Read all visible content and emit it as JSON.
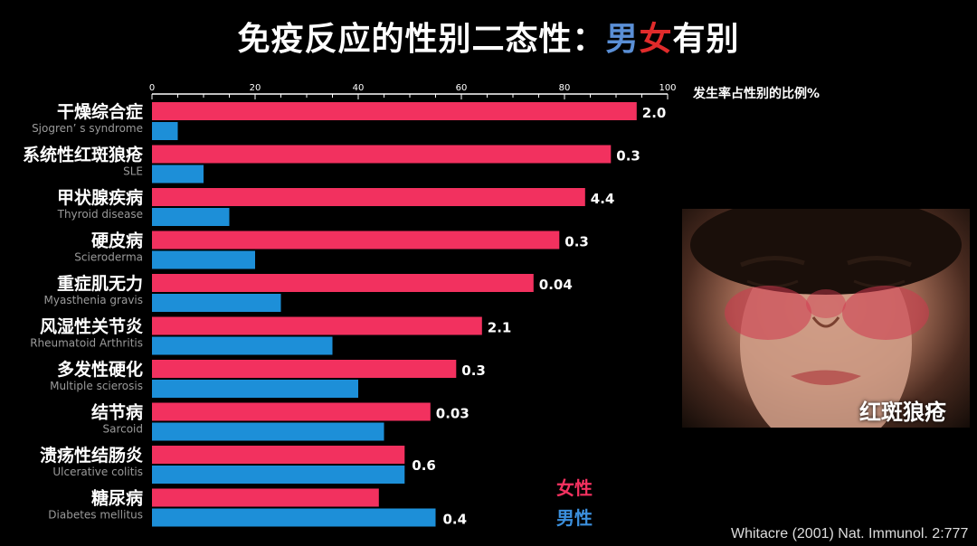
{
  "title": {
    "prefix": "免疫反应的性别二态性：",
    "male_char": "男",
    "female_char": "女",
    "suffix": "有别"
  },
  "colors": {
    "female": "#f2315f",
    "male": "#1d8fd8",
    "title_male": "#5a8fd6",
    "title_female": "#e02b2b",
    "legend_female": "#f2315f",
    "legend_male": "#3b8fdc"
  },
  "chart_data": {
    "type": "bar",
    "orientation": "horizontal",
    "xlabel": "发生率占性别的比例%",
    "xlim": [
      0,
      100
    ],
    "xticks": [
      0,
      20,
      40,
      60,
      80,
      100
    ],
    "grid": false,
    "legend_position": "bottom-right",
    "categories": [
      {
        "cn": "干燥综合症",
        "en": "Sjogren’ s syndrome"
      },
      {
        "cn": "系统性红斑狼疮",
        "en": "SLE"
      },
      {
        "cn": "甲状腺疾病",
        "en": "Thyroid  disease"
      },
      {
        "cn": "硬皮病",
        "en": "Scieroderma"
      },
      {
        "cn": "重症肌无力",
        "en": "Myasthenia gravis"
      },
      {
        "cn": "风湿性关节炎",
        "en": "Rheumatoid Arthritis"
      },
      {
        "cn": "多发性硬化",
        "en": "Multiple scierosis"
      },
      {
        "cn": "结节病",
        "en": "Sarcoid"
      },
      {
        "cn": "溃疡性结肠炎",
        "en": "Ulcerative colitis"
      },
      {
        "cn": "糖尿病",
        "en": "Diabetes mellitus"
      }
    ],
    "series": [
      {
        "name": "女性",
        "values": [
          94,
          89,
          84,
          79,
          74,
          64,
          59,
          54,
          49,
          44
        ]
      },
      {
        "name": "男性",
        "values": [
          5,
          10,
          15,
          20,
          25,
          35,
          40,
          45,
          49,
          55
        ]
      }
    ],
    "data_labels": [
      "2.0",
      "0.3",
      "4.4",
      "0.3",
      "0.04",
      "2.1",
      "0.3",
      "0.03",
      "0.6",
      "0.4"
    ]
  },
  "photo": {
    "caption": "红斑狼疮"
  },
  "source": "Whitacre (2001) Nat. Immunol. 2:777"
}
